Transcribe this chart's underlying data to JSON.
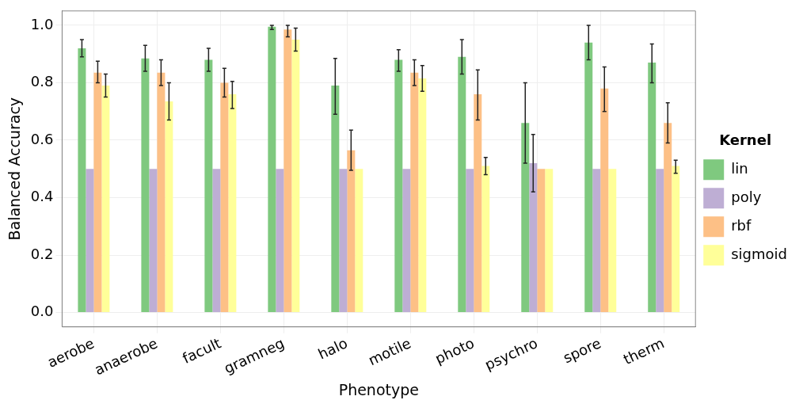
{
  "chart_data": {
    "type": "bar",
    "xlabel": "Phenotype",
    "ylabel": "Balanced Accuracy",
    "legend_title": "Kernel",
    "legend": "right",
    "grid": true,
    "categories": [
      "aerobe",
      "anaerobe",
      "facult",
      "gramneg",
      "halo",
      "motile",
      "photo",
      "psychro",
      "spore",
      "therm"
    ],
    "ylim": [
      -0.05,
      1.05
    ],
    "yticks": [
      {
        "value": 0,
        "label": "0.0"
      },
      0.2,
      0.4,
      0.6,
      0.8,
      {
        "value": 1,
        "label": "1.0"
      }
    ],
    "series": [
      {
        "name": "lin",
        "color": "#7fc97f",
        "values": [
          0.92,
          0.885,
          0.88,
          0.995,
          0.79,
          0.88,
          0.89,
          0.66,
          0.94,
          0.87
        ],
        "errors": [
          [
            0.89,
            0.95
          ],
          [
            0.84,
            0.93
          ],
          [
            0.84,
            0.92
          ],
          [
            0.985,
            1.0
          ],
          [
            0.69,
            0.885
          ],
          [
            0.84,
            0.915
          ],
          [
            0.83,
            0.95
          ],
          [
            0.52,
            0.8
          ],
          [
            0.88,
            1.0
          ],
          [
            0.8,
            0.935
          ]
        ]
      },
      {
        "name": "poly",
        "color": "#beaed4",
        "values": [
          0.5,
          0.5,
          0.5,
          0.5,
          0.5,
          0.5,
          0.5,
          0.52,
          0.5,
          0.5
        ],
        "errors": [
          null,
          null,
          null,
          null,
          null,
          null,
          null,
          [
            0.42,
            0.62
          ],
          null,
          null
        ]
      },
      {
        "name": "rbf",
        "color": "#fdc086",
        "values": [
          0.835,
          0.835,
          0.8,
          0.985,
          0.565,
          0.835,
          0.76,
          0.5,
          0.78,
          0.66
        ],
        "errors": [
          [
            0.8,
            0.875
          ],
          [
            0.79,
            0.88
          ],
          [
            0.75,
            0.85
          ],
          [
            0.96,
            1.0
          ],
          [
            0.495,
            0.635
          ],
          [
            0.79,
            0.88
          ],
          [
            0.67,
            0.845
          ],
          null,
          [
            0.7,
            0.855
          ],
          [
            0.59,
            0.73
          ]
        ]
      },
      {
        "name": "sigmoid",
        "color": "#ffff99",
        "values": [
          0.79,
          0.735,
          0.76,
          0.95,
          0.5,
          0.815,
          0.51,
          0.5,
          0.5,
          0.51
        ],
        "errors": [
          [
            0.75,
            0.83
          ],
          [
            0.67,
            0.8
          ],
          [
            0.71,
            0.805
          ],
          [
            0.91,
            0.99
          ],
          null,
          [
            0.77,
            0.86
          ],
          [
            0.48,
            0.54
          ],
          null,
          null,
          [
            0.485,
            0.53
          ]
        ]
      }
    ]
  }
}
